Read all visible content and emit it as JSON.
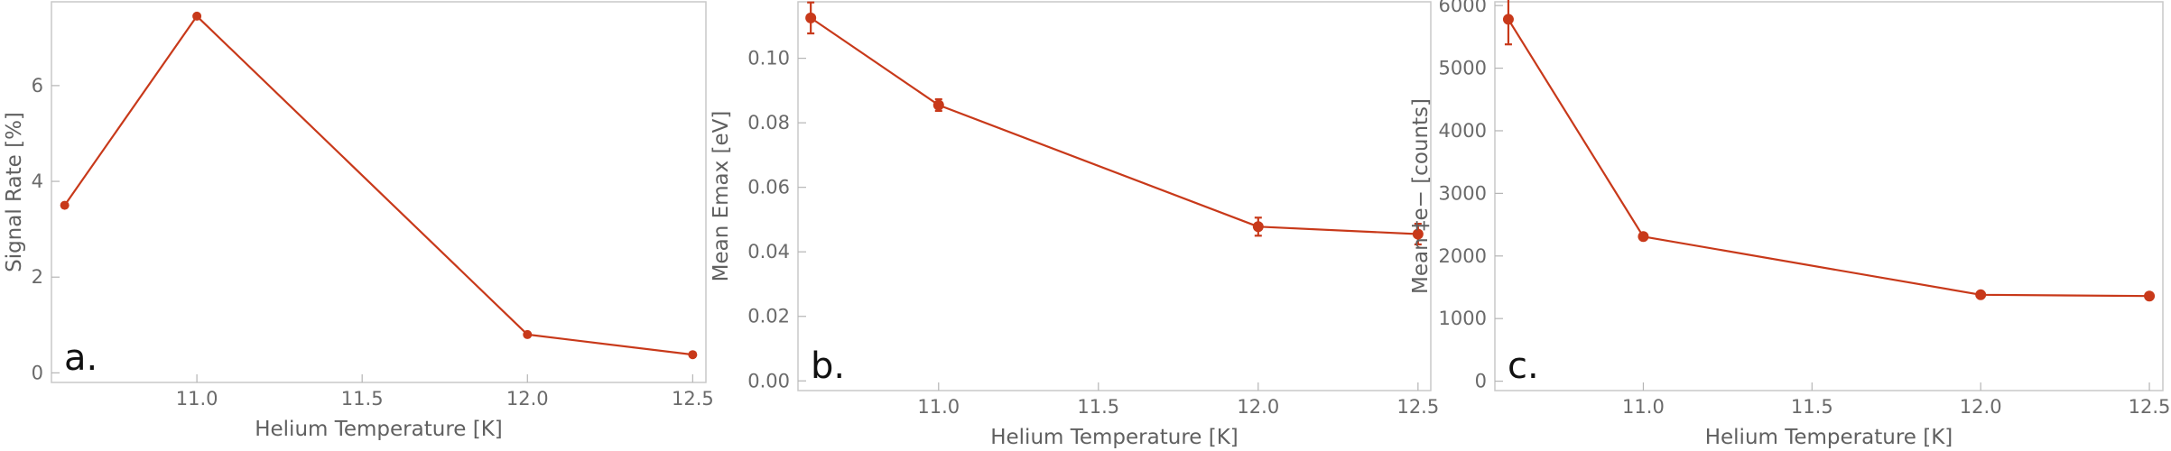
{
  "accent_color": "#c8391a",
  "chart_data": [
    {
      "type": "line",
      "panel_label": "a.",
      "xlabel": "Helium Temperature [K]",
      "ylabel": "Signal Rate [%]",
      "xlim": [
        10.56,
        12.54
      ],
      "ylim": [
        -0.2,
        7.75
      ],
      "xticks": [
        11.0,
        11.5,
        12.0,
        12.5
      ],
      "xtick_labels": [
        "11.0",
        "11.5",
        "12.0",
        "12.5"
      ],
      "yticks": [
        0,
        2,
        4,
        6
      ],
      "ytick_labels": [
        "0",
        "2",
        "4",
        "6"
      ],
      "grid": false,
      "legend": "none",
      "x": [
        10.6,
        11.0,
        12.0,
        12.5
      ],
      "y": [
        3.5,
        7.45,
        0.8,
        0.38
      ],
      "yerr": [
        0,
        0,
        0,
        0
      ]
    },
    {
      "type": "line",
      "panel_label": "b.",
      "xlabel": "Helium Temperature [K]",
      "ylabel": "Mean Emax [eV]",
      "xlim": [
        10.56,
        12.54
      ],
      "ylim": [
        -0.003,
        0.1175
      ],
      "xticks": [
        11.0,
        11.5,
        12.0,
        12.5
      ],
      "xtick_labels": [
        "11.0",
        "11.5",
        "12.0",
        "12.5"
      ],
      "yticks": [
        0.0,
        0.02,
        0.04,
        0.06,
        0.08,
        0.1
      ],
      "ytick_labels": [
        "0.00",
        "0.02",
        "0.04",
        "0.06",
        "0.08",
        "0.10"
      ],
      "grid": false,
      "legend": "none",
      "x": [
        10.6,
        11.0,
        12.0,
        12.5
      ],
      "y": [
        0.1125,
        0.0855,
        0.0478,
        0.0455
      ],
      "yerr": [
        0.0048,
        0.0018,
        0.0028,
        0.0032
      ]
    },
    {
      "type": "line",
      "panel_label": "c.",
      "xlabel": "Helium Temperature [K]",
      "ylabel": "Mean ‡e− [counts]",
      "xlim": [
        10.56,
        12.54
      ],
      "ylim": [
        -150,
        6060
      ],
      "xticks": [
        11.0,
        11.5,
        12.0,
        12.5
      ],
      "xtick_labels": [
        "11.0",
        "11.5",
        "12.0",
        "12.5"
      ],
      "yticks": [
        0,
        1000,
        2000,
        3000,
        4000,
        5000,
        6000
      ],
      "ytick_labels": [
        "0",
        "1000",
        "2000",
        "3000",
        "4000",
        "5000",
        "6000"
      ],
      "grid": false,
      "legend": "none",
      "x": [
        10.6,
        11.0,
        12.0,
        12.5
      ],
      "y": [
        5780,
        2310,
        1380,
        1360
      ],
      "yerr": [
        400,
        40,
        40,
        35
      ]
    }
  ]
}
